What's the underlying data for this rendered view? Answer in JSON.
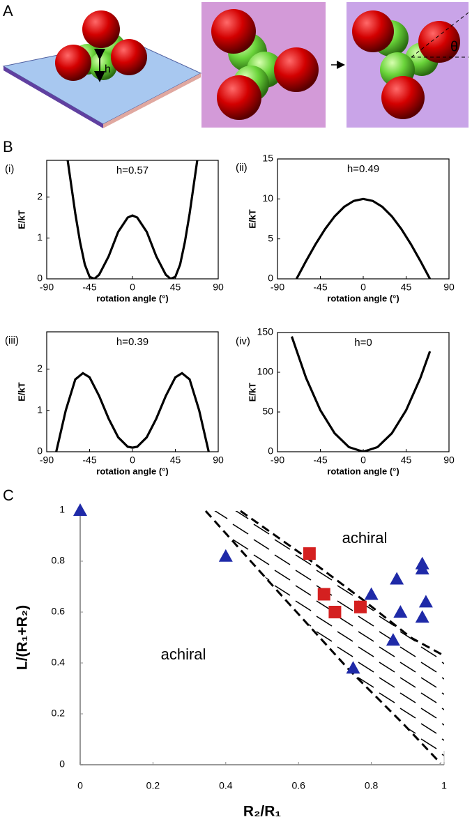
{
  "panel_labels": [
    "A",
    "B",
    "C"
  ],
  "illustration": {
    "height_label": "h",
    "angle_label": "θ"
  },
  "chart_data": [
    {
      "type": "line",
      "label": "(i)",
      "annotation": "h=0.57",
      "x_label": "rotation angle (°)",
      "y_label": "E/kT",
      "color": "#000000",
      "x": [
        -68,
        -60,
        -55,
        -50,
        -45,
        -40,
        -35,
        -25,
        -15,
        -5,
        0,
        5,
        15,
        25,
        35,
        40,
        45,
        50,
        55,
        60,
        68
      ],
      "values": [
        2.9,
        1.6,
        0.9,
        0.35,
        0.05,
        0,
        0.1,
        0.55,
        1.15,
        1.5,
        1.55,
        1.5,
        1.15,
        0.55,
        0.1,
        0,
        0.05,
        0.35,
        0.9,
        1.6,
        2.9
      ],
      "xlim": [
        -90,
        90
      ],
      "xticks": [
        -90,
        -45,
        0,
        45,
        90
      ],
      "ylim": [
        0,
        2.9
      ],
      "yticks": [
        0,
        1,
        2
      ]
    },
    {
      "type": "line",
      "label": "(ii)",
      "annotation": "h=0.49",
      "x_label": "rotation angle (°)",
      "y_label": "E/kT",
      "color": "#000000",
      "x": [
        -70,
        -60,
        -50,
        -40,
        -30,
        -20,
        -10,
        0,
        10,
        20,
        30,
        40,
        50,
        60,
        70
      ],
      "values": [
        0,
        2.23,
        4.34,
        6.23,
        7.82,
        9.01,
        9.75,
        10,
        9.75,
        9.01,
        7.82,
        6.23,
        4.34,
        2.23,
        0
      ],
      "xlim": [
        -90,
        90
      ],
      "xticks": [
        -90,
        -45,
        0,
        45,
        90
      ],
      "ylim": [
        0,
        15
      ],
      "yticks": [
        0,
        5,
        10,
        15
      ]
    },
    {
      "type": "line",
      "label": "(iii)",
      "annotation": "h=0.39",
      "x_label": "rotation angle (°)",
      "y_label": "E/kT",
      "color": "#000000",
      "x": [
        -80,
        -70,
        -60,
        -52,
        -45,
        -35,
        -25,
        -15,
        -5,
        0,
        5,
        15,
        25,
        35,
        45,
        52,
        60,
        70,
        80
      ],
      "values": [
        0,
        1.0,
        1.75,
        1.9,
        1.8,
        1.35,
        0.8,
        0.35,
        0.12,
        0.1,
        0.12,
        0.35,
        0.8,
        1.35,
        1.8,
        1.9,
        1.75,
        1.0,
        0
      ],
      "xlim": [
        -90,
        90
      ],
      "xticks": [
        -90,
        -45,
        0,
        45,
        90
      ],
      "ylim": [
        0,
        2.9
      ],
      "yticks": [
        0,
        1,
        2
      ]
    },
    {
      "type": "line",
      "label": "(iv)",
      "annotation": "h=0",
      "x_label": "rotation angle (°)",
      "y_label": "E/kT",
      "color": "#000000",
      "x": [
        -75,
        -60,
        -45,
        -30,
        -15,
        0,
        15,
        30,
        45,
        60,
        70
      ],
      "values": [
        145,
        92.8,
        52.2,
        23.2,
        5.8,
        0,
        5.8,
        23.2,
        52.2,
        92.8,
        126.3
      ],
      "xlim": [
        -90,
        90
      ],
      "xticks": [
        -90,
        -45,
        0,
        45,
        90
      ],
      "ylim": [
        0,
        150
      ],
      "yticks": [
        0,
        50,
        100,
        150
      ]
    },
    {
      "type": "scatter",
      "x_label": "R₂/R₁",
      "y_label": "L/(R₁+R₂)",
      "annotations": [
        "achiral",
        "achiral"
      ],
      "series": [
        {
          "marker": "triangle",
          "color": "#1f2aa8",
          "x": [
            0,
            0.4,
            0.75,
            0.8,
            0.86,
            0.87,
            0.88,
            0.94,
            0.94,
            0.95,
            0.94
          ],
          "values": [
            1,
            0.82,
            0.38,
            0.67,
            0.49,
            0.73,
            0.6,
            0.77,
            0.79,
            0.64,
            0.58
          ]
        },
        {
          "marker": "square",
          "color": "#d42020",
          "x": [
            0.63,
            0.67,
            0.7,
            0.77
          ],
          "values": [
            0.83,
            0.67,
            0.6,
            0.62
          ]
        }
      ],
      "xlim": [
        0,
        1
      ],
      "xticks": [
        0,
        0.2,
        0.4,
        0.6,
        0.8,
        1
      ],
      "ylim": [
        0,
        1
      ],
      "yticks": [
        0,
        0.2,
        0.4,
        0.6,
        0.8,
        1
      ]
    }
  ]
}
